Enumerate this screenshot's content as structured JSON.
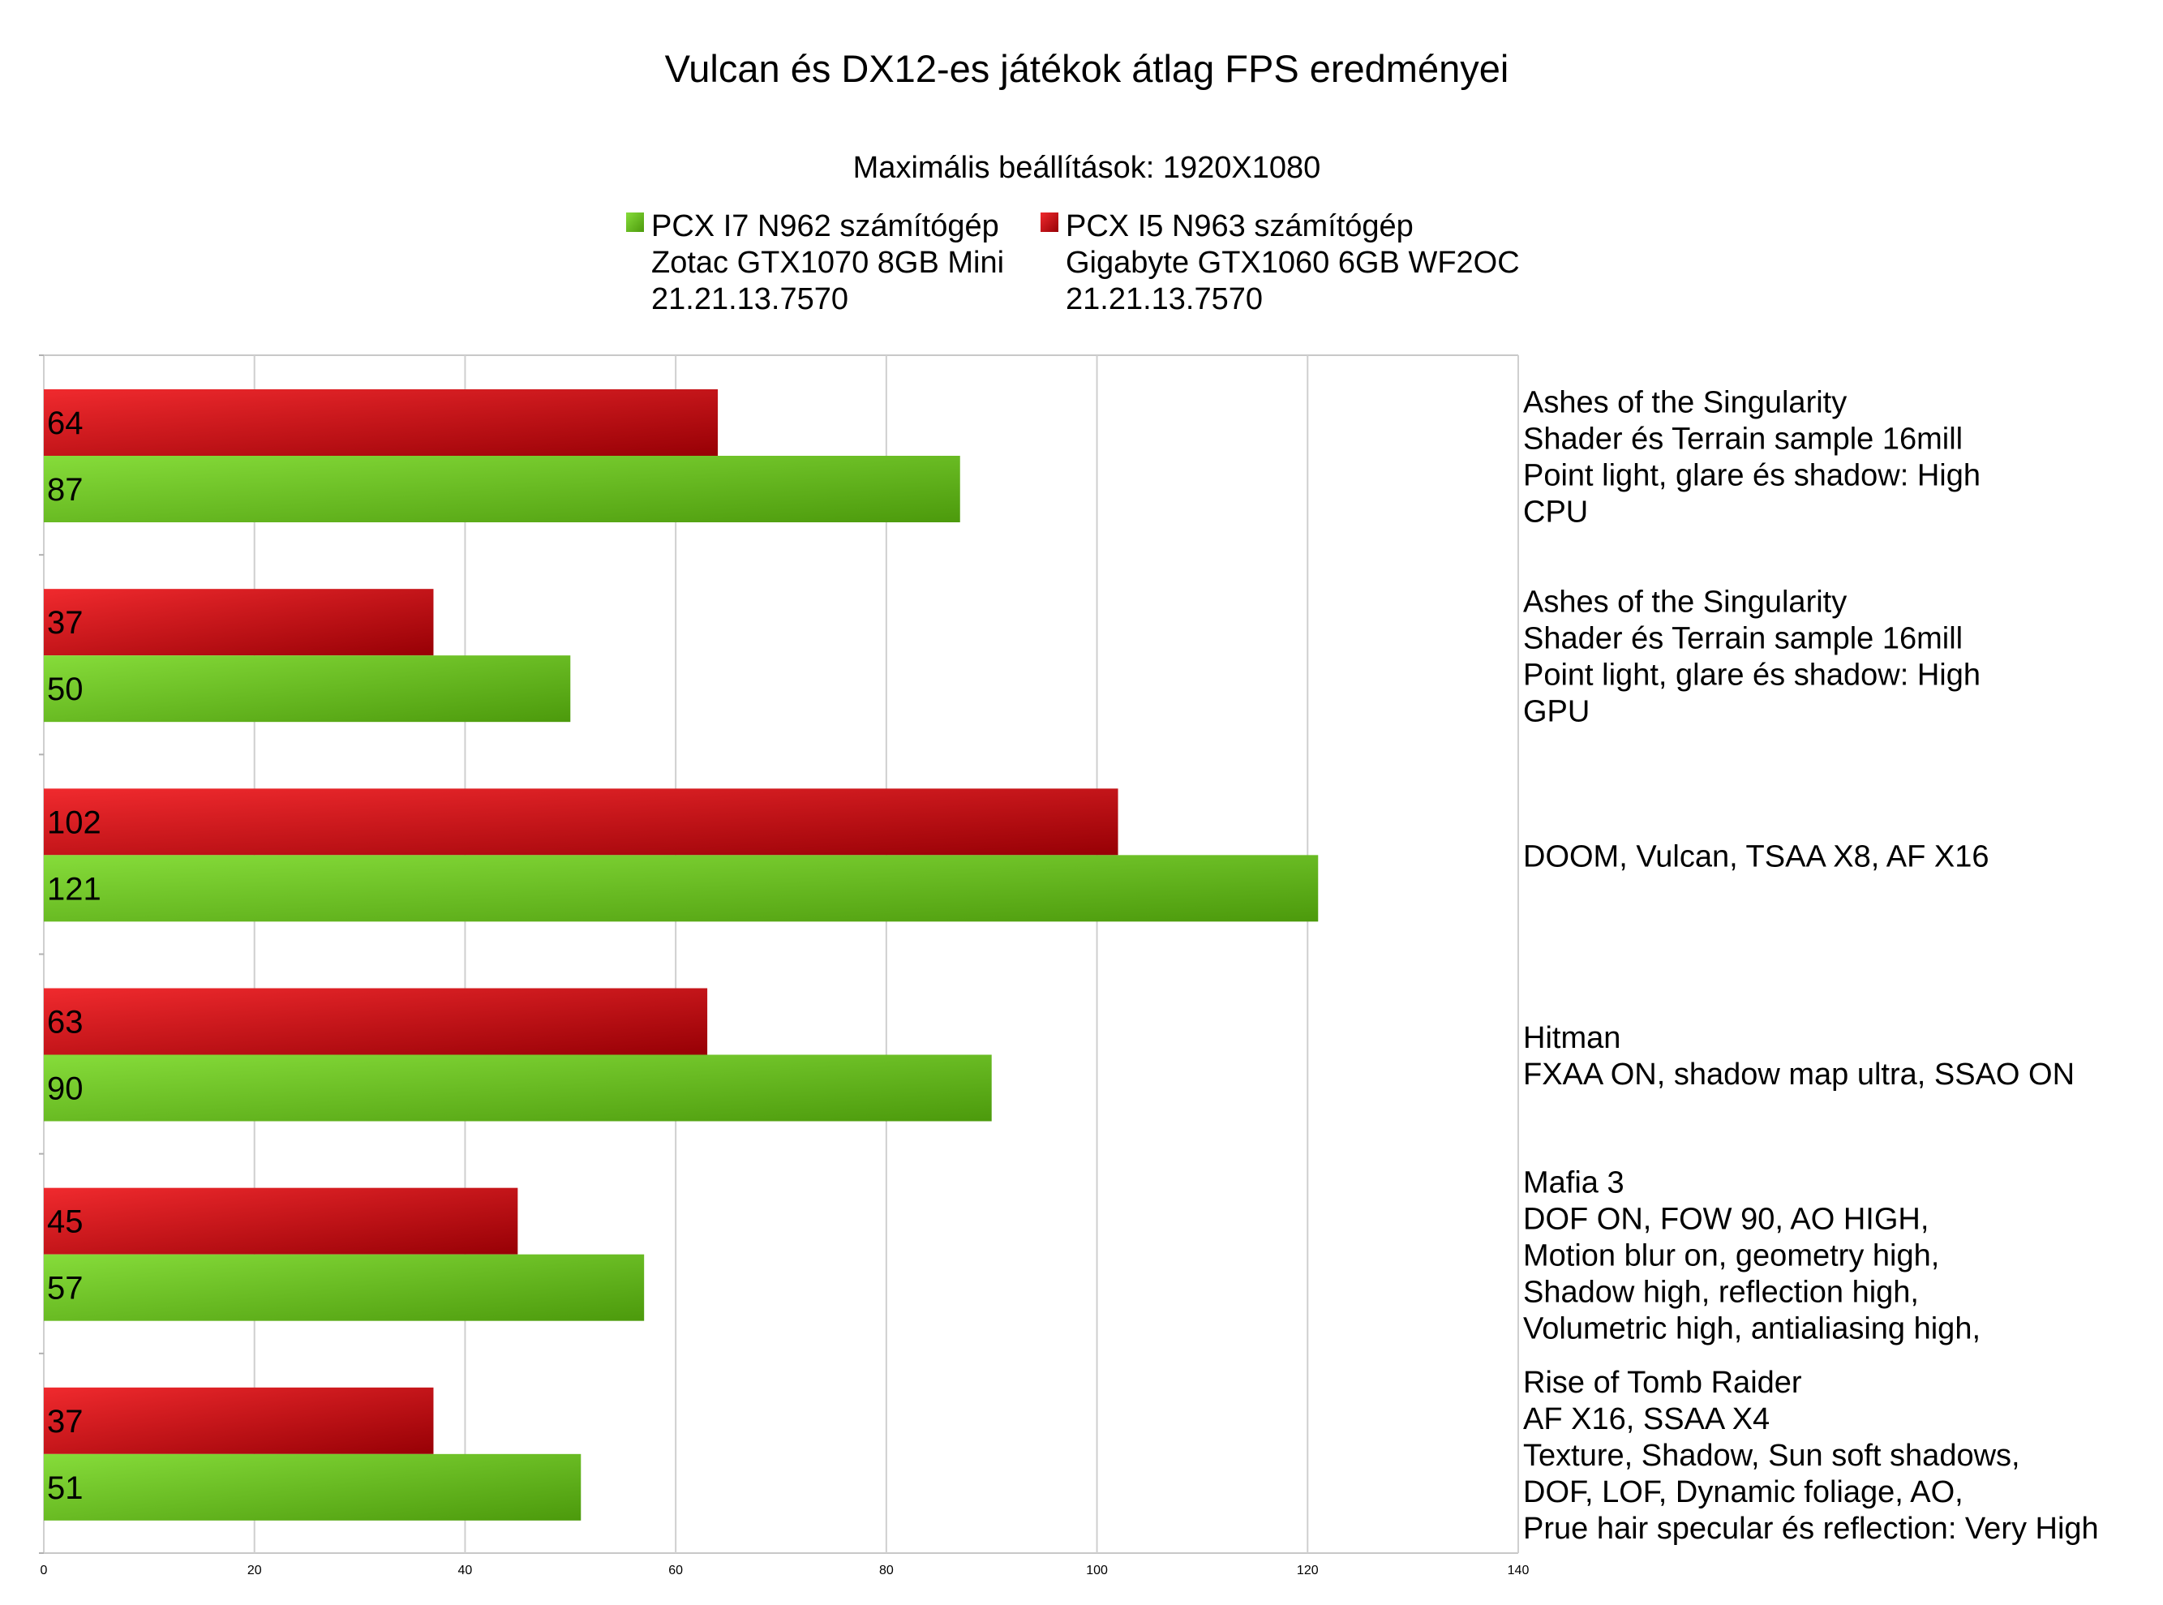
{
  "chart_data": {
    "type": "bar",
    "orientation": "horizontal",
    "title": "Vulcan és DX12-es játékok átlag FPS eredményei",
    "subtitle": "Maximális beállítások: 1920X1080",
    "legend_position": "top",
    "xlim": [
      0,
      140
    ],
    "xticks": [
      "0",
      "20",
      "40",
      "60",
      "80",
      "100",
      "120",
      "140"
    ],
    "grid": true,
    "categories": [
      [
        "Ashes of the Singularity",
        "Shader és Terrain sample 16mill",
        "Point light, glare és shadow: High",
        "CPU"
      ],
      [
        "Ashes of the Singularity",
        "Shader és Terrain sample 16mill",
        "Point light, glare és shadow: High",
        "GPU"
      ],
      [
        "DOOM, Vulcan, TSAA X8, AF X16"
      ],
      [
        "Hitman",
        "FXAA ON, shadow map ultra, SSAO ON"
      ],
      [
        "Mafia 3",
        "DOF ON, FOW 90, AO HIGH,",
        "Motion blur on, geometry high,",
        "Shadow high, reflection high,",
        "Volumetric high, antialiasing high,"
      ],
      [
        "Rise of Tomb Raider",
        "AF X16, SSAA X4",
        "Texture, Shadow, Sun soft shadows,",
        "DOF, LOF, Dynamic foliage, AO,",
        "Prue hair specular és reflection: Very High"
      ]
    ],
    "series": [
      {
        "name": [
          "PCX I7 N962 számítógép",
          "Zotac GTX1070 8GB Mini",
          "21.21.13.7570"
        ],
        "color": "#5cb81e",
        "values": [
          87,
          50,
          121,
          90,
          57,
          51
        ]
      },
      {
        "name": [
          "PCX I5 N963 számítógép",
          "Gigabyte GTX1060 6GB WF2OC",
          "21.21.13.7570"
        ],
        "color": "#c8101a",
        "values": [
          64,
          37,
          102,
          63,
          45,
          37
        ]
      }
    ]
  }
}
